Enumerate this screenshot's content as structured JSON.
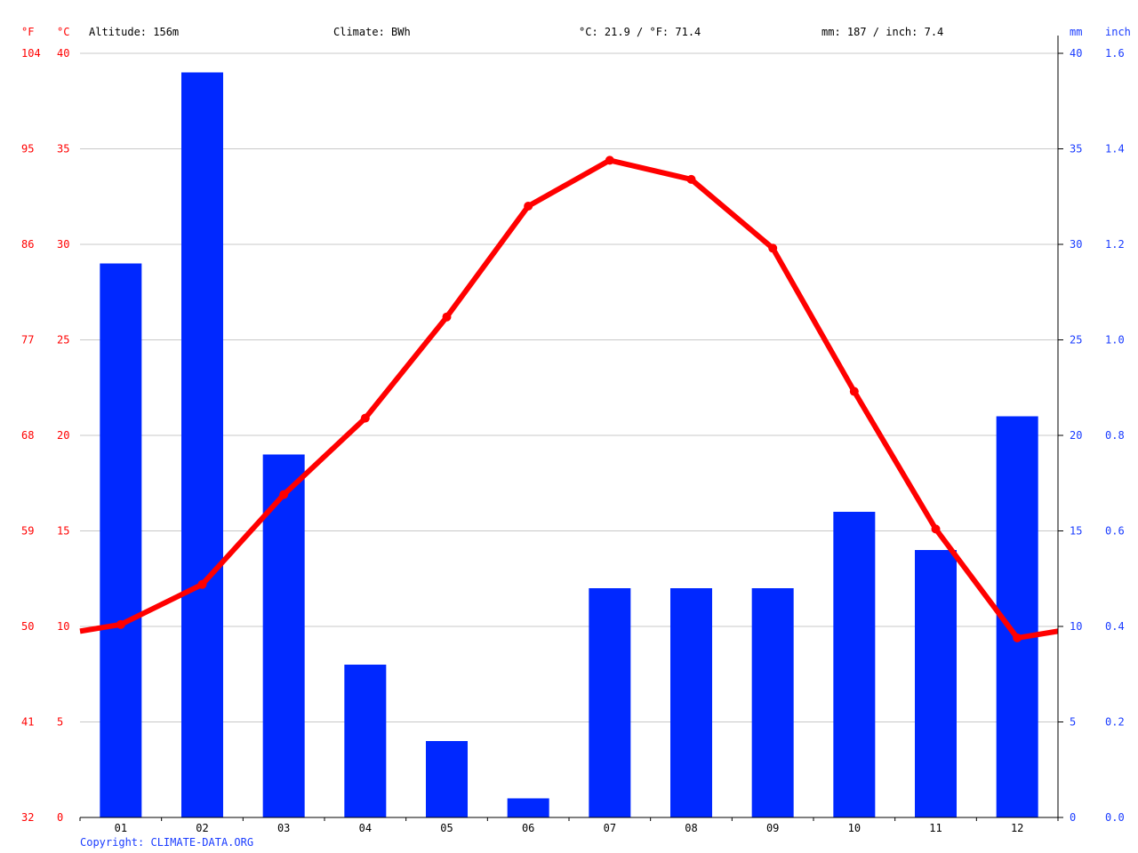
{
  "header": {
    "altitude": "Altitude: 156m",
    "climate": "Climate: BWh",
    "temperature": "°C: 21.9 / °F: 71.4",
    "precipitation": "mm: 187 / inch: 7.4"
  },
  "units": {
    "fahrenheit": "°F",
    "celsius": "°C",
    "mm": "mm",
    "inch": "inch"
  },
  "copyright": "Copyright: CLIMATE-DATA.ORG",
  "colors": {
    "temperature": "#ff0000",
    "precipitation": "#0028ff",
    "grid": "#c8c8c8",
    "axis": "#000000",
    "left_axis_text": "#ff0000",
    "right_axis_text": "#1a3cff"
  },
  "chart_data": {
    "type": "bar",
    "categories": [
      "01",
      "02",
      "03",
      "04",
      "05",
      "06",
      "07",
      "08",
      "09",
      "10",
      "11",
      "12"
    ],
    "series": [
      {
        "type": "bar",
        "axis": "right",
        "unit": "mm",
        "values": [
          29,
          39,
          19,
          8,
          4,
          1,
          12,
          12,
          12,
          16,
          14,
          21
        ]
      },
      {
        "type": "line",
        "axis": "left",
        "unit": "°C",
        "values": [
          10.1,
          12.2,
          16.9,
          20.9,
          26.2,
          32.0,
          34.4,
          33.4,
          29.8,
          22.3,
          15.1,
          9.4
        ]
      }
    ],
    "y_left_celsius": {
      "ticks": [
        "0",
        "5",
        "10",
        "15",
        "20",
        "25",
        "30",
        "35",
        "40"
      ],
      "ylim": [
        0,
        40
      ]
    },
    "y_left_fahrenheit": {
      "ticks": [
        "32",
        "41",
        "50",
        "59",
        "68",
        "77",
        "86",
        "95",
        "104"
      ]
    },
    "y_right_mm": {
      "ticks": [
        "0",
        "5",
        "10",
        "15",
        "20",
        "25",
        "30",
        "35",
        "40"
      ],
      "ylim": [
        0,
        40
      ]
    },
    "y_right_inch": {
      "ticks": [
        "0.0",
        "0.2",
        "0.4",
        "0.6",
        "0.8",
        "1.0",
        "1.2",
        "1.4",
        "1.6"
      ]
    },
    "grid": true
  }
}
